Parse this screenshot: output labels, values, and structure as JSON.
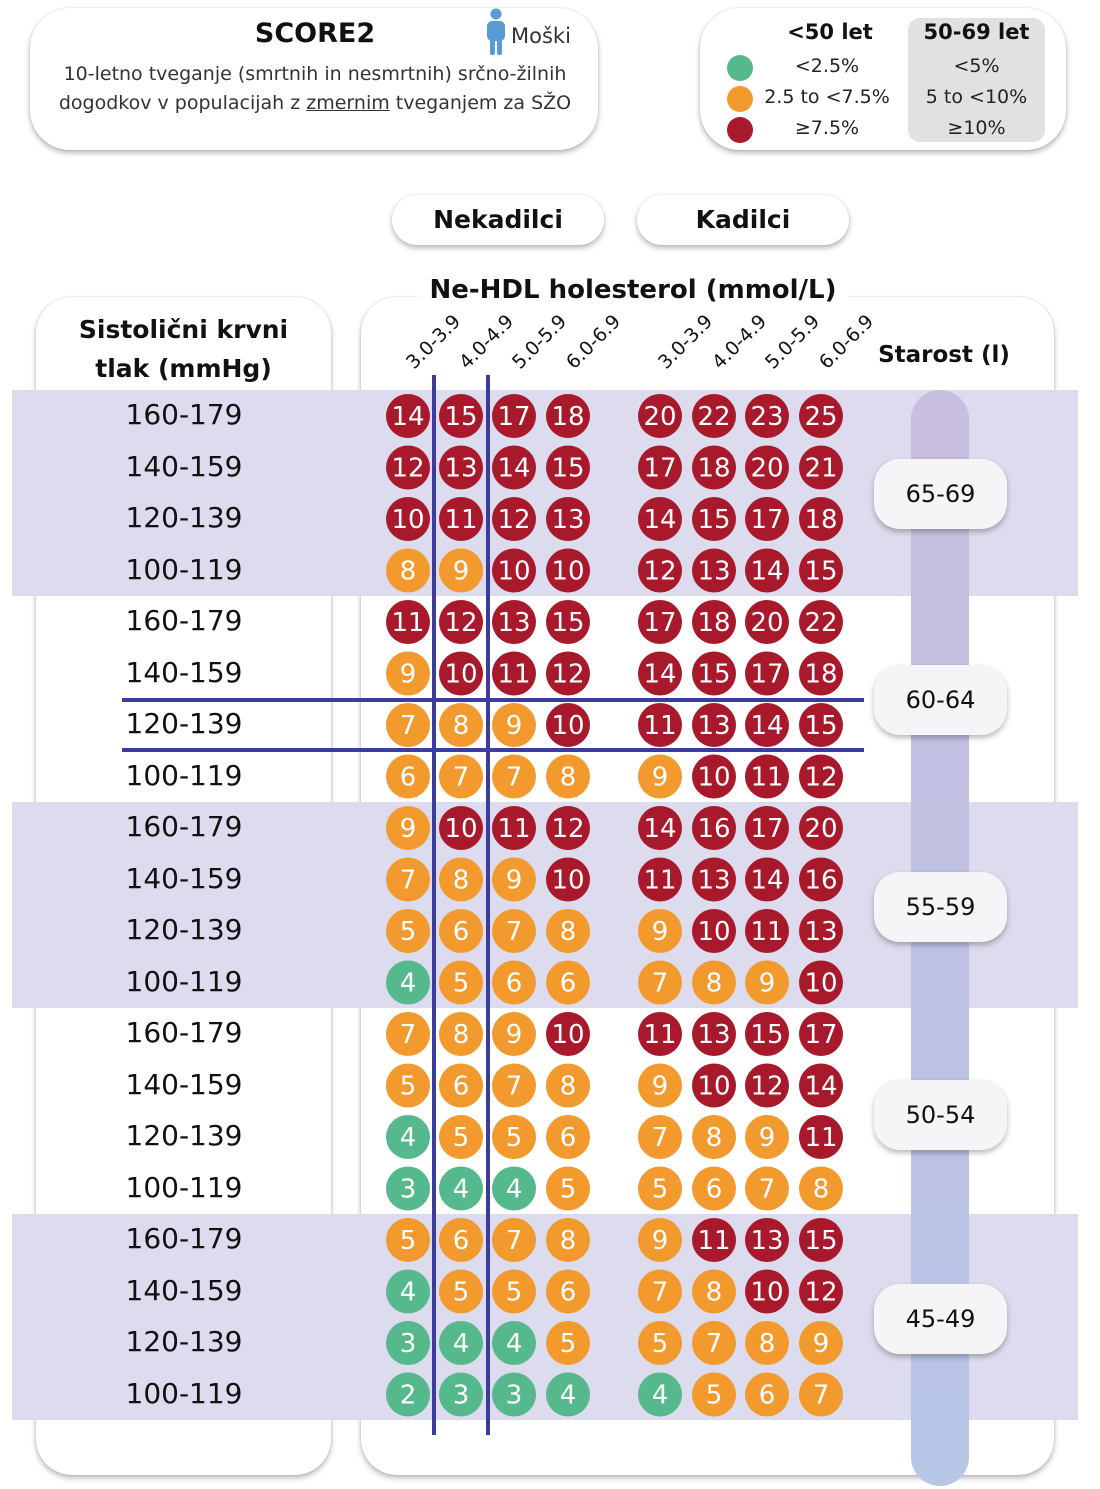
{
  "header": {
    "title": "SCORE2",
    "sex": "Moški",
    "subtitle_line1": "10-letno tveganje (smrtnih in nesmrtnih) srčno-žilnih",
    "subtitle_line2_pre": "dogodkov v populacijah z ",
    "subtitle_line2_ul": "zmernim",
    "subtitle_line2_post": " tveganjem za SŽO"
  },
  "legend": {
    "group_under50": "<50 let",
    "group_50_69": "50-69 let",
    "rows": [
      {
        "color": "#55b98d",
        "under50": "<2.5%",
        "age50_69": "<5%"
      },
      {
        "color": "#f39a2e",
        "under50": "2.5 to <7.5%",
        "age50_69": "5 to <10%"
      },
      {
        "color": "#a8192c",
        "under50": "≥7.5%",
        "age50_69": "≥10%"
      }
    ]
  },
  "columns": {
    "nonsmokers_label": "Nekadilci",
    "smokers_label": "Kadilci",
    "cholesterol_title": "Ne-HDL holesterol (mmol/L)",
    "bp_title_line1": "Sistolični krvni",
    "bp_title_line2": "tlak (mmHg)",
    "age_title": "Starost (l)"
  },
  "colors": {
    "low": "#55b98d",
    "moderate": "#f39a2e",
    "high": "#a8192c",
    "band": "#dcdcee",
    "guide": "#3c3c9c"
  },
  "chart_data": {
    "type": "table",
    "cholesterol_categories": [
      "3.0-3.9",
      "4.0-4.9",
      "5.0-5.9",
      "6.0-6.9"
    ],
    "bp_categories": [
      "160-179",
      "140-159",
      "120-139",
      "100-119"
    ],
    "age_groups": [
      {
        "age": "65-69",
        "nonsmokers": [
          [
            14,
            15,
            17,
            18
          ],
          [
            12,
            13,
            14,
            15
          ],
          [
            10,
            11,
            12,
            13
          ],
          [
            8,
            9,
            10,
            10
          ]
        ],
        "smokers": [
          [
            20,
            22,
            23,
            25
          ],
          [
            17,
            18,
            20,
            21
          ],
          [
            14,
            15,
            17,
            18
          ],
          [
            12,
            13,
            14,
            15
          ]
        ]
      },
      {
        "age": "60-64",
        "nonsmokers": [
          [
            11,
            12,
            13,
            15
          ],
          [
            9,
            10,
            11,
            12
          ],
          [
            7,
            8,
            9,
            10
          ],
          [
            6,
            7,
            7,
            8
          ]
        ],
        "smokers": [
          [
            17,
            18,
            20,
            22
          ],
          [
            14,
            15,
            17,
            18
          ],
          [
            11,
            13,
            14,
            15
          ],
          [
            9,
            10,
            11,
            12
          ]
        ]
      },
      {
        "age": "55-59",
        "nonsmokers": [
          [
            9,
            10,
            11,
            12
          ],
          [
            7,
            8,
            9,
            10
          ],
          [
            5,
            6,
            7,
            8
          ],
          [
            4,
            5,
            6,
            6
          ]
        ],
        "smokers": [
          [
            14,
            16,
            17,
            20
          ],
          [
            11,
            13,
            14,
            16
          ],
          [
            9,
            10,
            11,
            13
          ],
          [
            7,
            8,
            9,
            10
          ]
        ]
      },
      {
        "age": "50-54",
        "nonsmokers": [
          [
            7,
            8,
            9,
            10
          ],
          [
            5,
            6,
            7,
            8
          ],
          [
            4,
            5,
            5,
            6
          ],
          [
            3,
            4,
            4,
            5
          ]
        ],
        "smokers": [
          [
            11,
            13,
            15,
            17
          ],
          [
            9,
            10,
            12,
            14
          ],
          [
            7,
            8,
            9,
            11
          ],
          [
            5,
            6,
            7,
            8
          ]
        ]
      },
      {
        "age": "45-49",
        "nonsmokers": [
          [
            5,
            6,
            7,
            8
          ],
          [
            4,
            5,
            5,
            6
          ],
          [
            3,
            4,
            4,
            5
          ],
          [
            2,
            3,
            3,
            4
          ]
        ],
        "smokers": [
          [
            9,
            11,
            13,
            15
          ],
          [
            7,
            8,
            10,
            12
          ],
          [
            5,
            7,
            8,
            9
          ],
          [
            4,
            5,
            6,
            7
          ]
        ]
      }
    ],
    "risk_thresholds_50_69": {
      "low_below": 5,
      "high_at_or_above": 10
    }
  }
}
